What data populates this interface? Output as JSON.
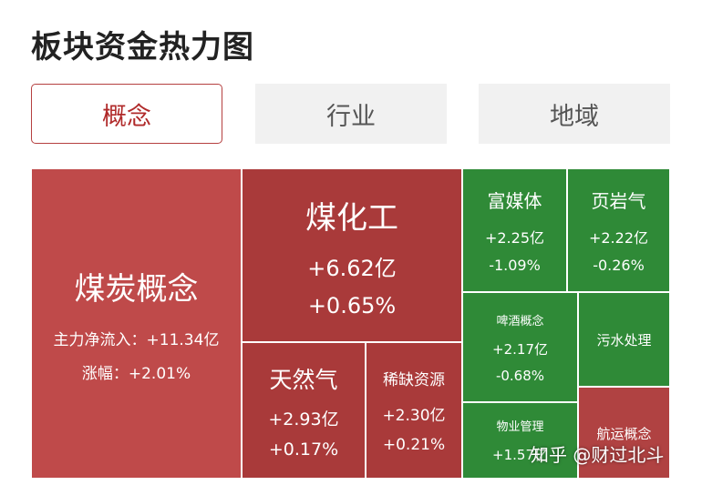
{
  "title": "板块资金热力图",
  "tabs": [
    "概念",
    "行业",
    "地域"
  ],
  "heatmap": [
    {
      "name": "煤炭概念",
      "line1": "主力净流入：+11.34亿",
      "line2": "涨幅：+2.01%",
      "color": "#bf4a4a"
    },
    {
      "name": "煤化工",
      "line1": "+6.62亿",
      "line2": "+0.65%",
      "color": "#a93a3a"
    },
    {
      "name": "天然气",
      "line1": "+2.93亿",
      "line2": "+0.17%",
      "color": "#a93a3a"
    },
    {
      "name": "稀缺资源",
      "line1": "+2.30亿",
      "line2": "+0.21%",
      "color": "#a93a3a"
    },
    {
      "name": "富媒体",
      "line1": "+2.25亿",
      "line2": "-1.09%",
      "color": "#2f8a37"
    },
    {
      "name": "页岩气",
      "line1": "+2.22亿",
      "line2": "-0.26%",
      "color": "#2f8a37"
    },
    {
      "name": "啤酒概念",
      "line1": "+2.17亿",
      "line2": "-0.68%",
      "color": "#2f8a37"
    },
    {
      "name": "污水处理",
      "line1": "",
      "line2": "",
      "color": "#2f8a37"
    },
    {
      "name": "物业管理",
      "line1": "+1.57亿",
      "line2": "",
      "color": "#2f8a37"
    },
    {
      "name": "航运概念",
      "line1": "",
      "line2": "",
      "color": "#b04242"
    }
  ],
  "watermark": "知乎 @财过北斗"
}
